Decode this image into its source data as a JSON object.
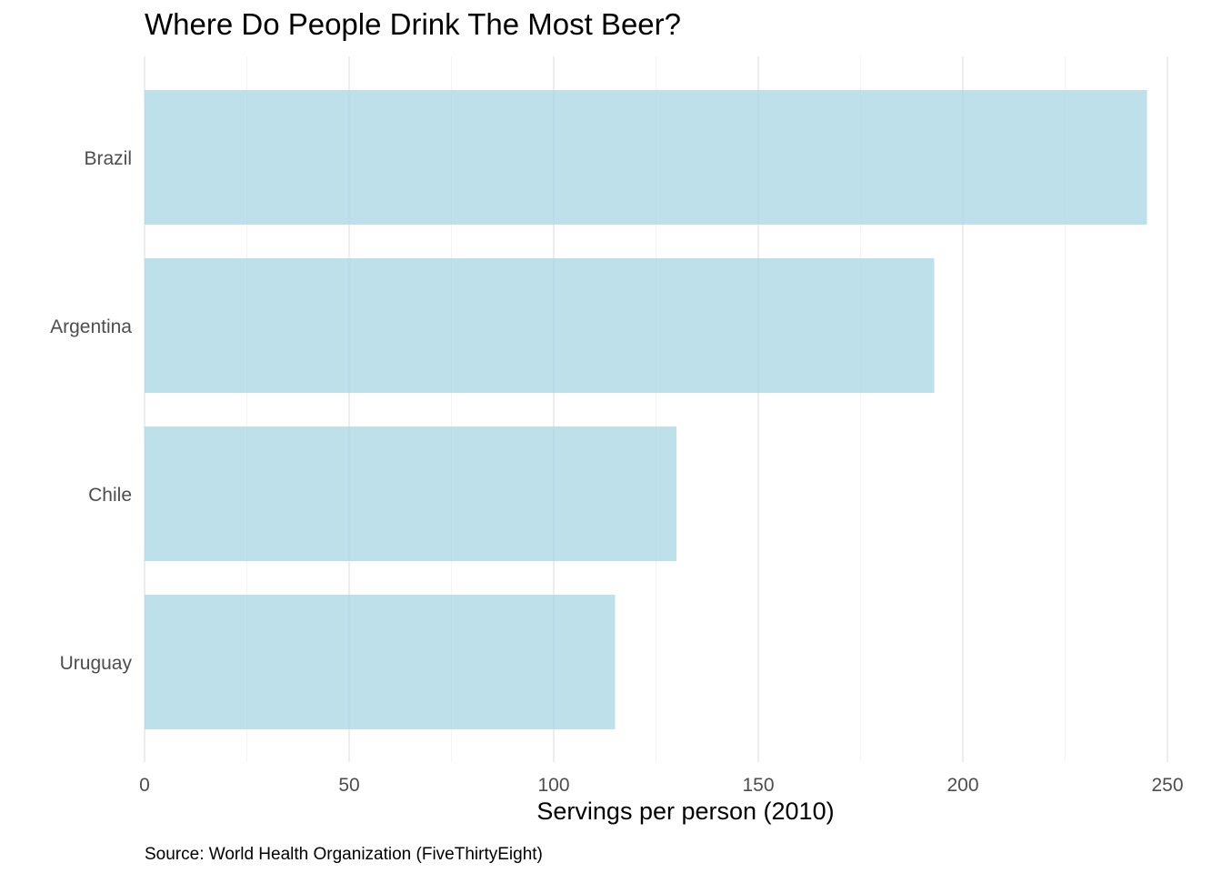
{
  "chart_data": {
    "type": "bar",
    "orientation": "horizontal",
    "title": "Where Do People Drink The Most Beer?",
    "xlabel": "Servings per person (2010)",
    "ylabel": "",
    "caption": "Source: World Health Organization (FiveThirtyEight)",
    "categories": [
      "Brazil",
      "Argentina",
      "Chile",
      "Uruguay"
    ],
    "values": [
      245,
      193,
      130,
      115
    ],
    "xlim": [
      0,
      250
    ],
    "xticks": [
      0,
      50,
      100,
      150,
      200,
      250
    ],
    "grid": "vertical major gridlines",
    "legend": "none",
    "bar_color": "#add8e6"
  }
}
